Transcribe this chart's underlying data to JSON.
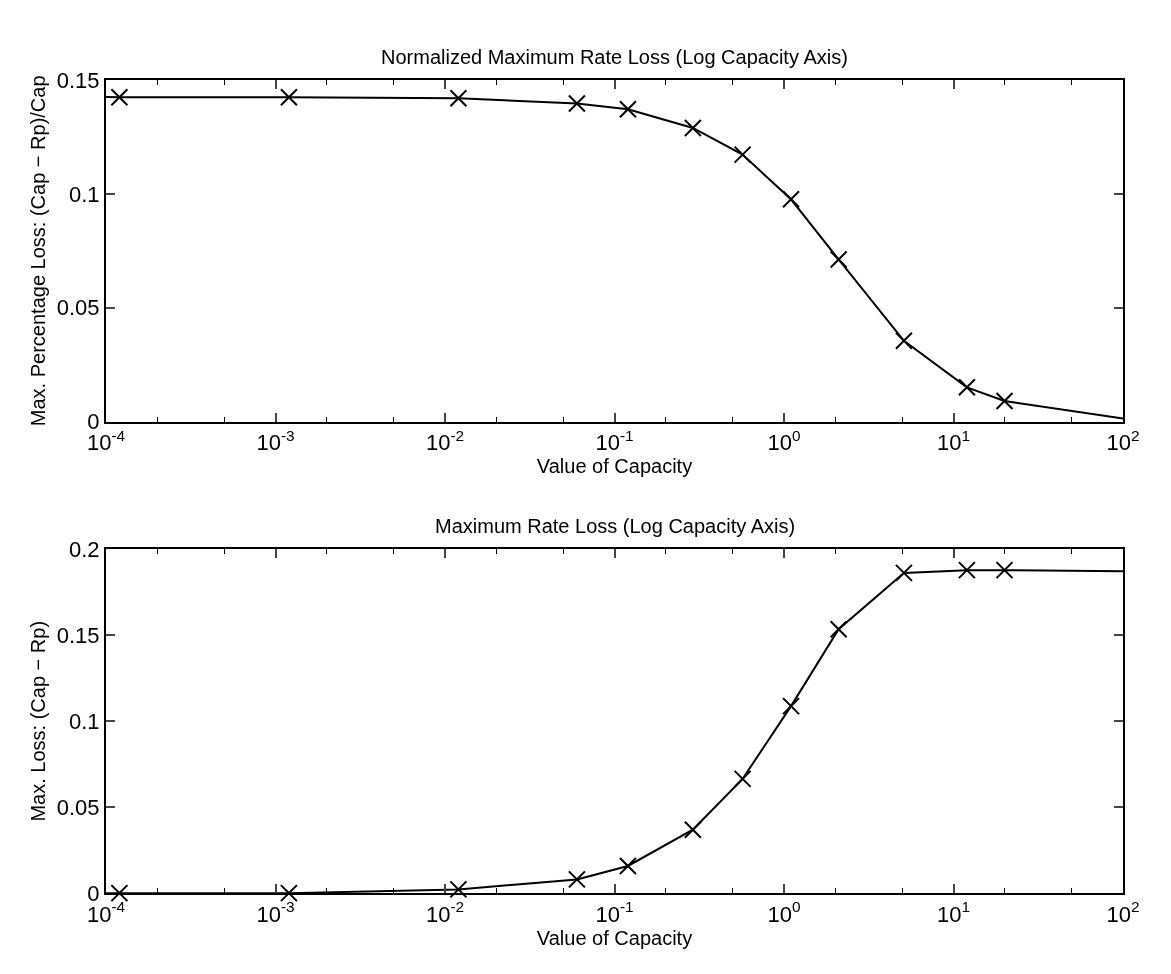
{
  "chart_data": [
    {
      "type": "line",
      "title": "Normalized Maximum Rate Loss (Log Capacity Axis)",
      "xlabel": "Value of Capacity",
      "ylabel": "Max. Percentage Loss: (Cap − Rp)/Cap",
      "series": [
        {
          "color": "#000000",
          "marker": "none",
          "x": [
            0.0001,
            0.00012,
            0.0012,
            0.012,
            0.06,
            0.12,
            0.29,
            0.57,
            1.1,
            2.1,
            5.1,
            12,
            20,
            100
          ],
          "values": [
            0.1425,
            0.1424,
            0.1424,
            0.1419,
            0.1396,
            0.1371,
            0.1289,
            0.1172,
            0.0976,
            0.0712,
            0.0355,
            0.0151,
            0.0091,
            0.0014
          ]
        },
        {
          "type": "scatter",
          "color": "#000000",
          "marker": "cross",
          "x": [
            0.00012,
            0.0012,
            0.012,
            0.06,
            0.12,
            0.29,
            0.57,
            1.1,
            2.1,
            5.1,
            12,
            20
          ],
          "values": [
            0.1424,
            0.1424,
            0.1419,
            0.1396,
            0.1371,
            0.1289,
            0.1172,
            0.0976,
            0.0712,
            0.0355,
            0.0151,
            0.0091
          ]
        }
      ],
      "log": "x",
      "xlim": [
        0.0001,
        100
      ],
      "xticks": [
        {
          "value": 0.0001,
          "label": "10$^{-4}$"
        },
        {
          "value": 0.001,
          "label": "10$^{-3}$"
        },
        {
          "value": 0.01,
          "label": "10$^{-2}$"
        },
        {
          "value": 0.1,
          "label": "10$^{-1}$"
        },
        {
          "value": 1,
          "label": "10$^{0}$"
        },
        {
          "value": 10,
          "label": "10$^{1}$"
        },
        {
          "value": 100,
          "label": "10$^{2}$"
        }
      ],
      "ylim": [
        0,
        0.15
      ],
      "yticks": [
        0,
        0.05,
        0.1,
        0.15
      ]
    },
    {
      "type": "line",
      "title": "Maximum Rate Loss (Log Capacity Axis)",
      "xlabel": "Value of Capacity",
      "ylabel": "Max. Loss: (Cap − Rp)",
      "series": [
        {
          "color": "#000000",
          "marker": "none",
          "x": [
            0.0001,
            0.00012,
            0.0012,
            0.012,
            0.06,
            0.12,
            0.29,
            0.57,
            1.1,
            2.1,
            5.1,
            12,
            20,
            100
          ],
          "values": [
            0,
            0,
            0,
            0.0022,
            0.008,
            0.0158,
            0.0369,
            0.0665,
            0.1088,
            0.1535,
            0.1863,
            0.1879,
            0.1879,
            0.1872
          ]
        },
        {
          "type": "scatter",
          "color": "#000000",
          "marker": "cross",
          "x": [
            0.00012,
            0.0012,
            0.012,
            0.06,
            0.12,
            0.29,
            0.57,
            1.1,
            2.1,
            5.1,
            12,
            20
          ],
          "values": [
            0,
            0,
            0.0022,
            0.008,
            0.0158,
            0.0369,
            0.0665,
            0.1088,
            0.1535,
            0.1863,
            0.1879,
            0.1879
          ]
        }
      ],
      "log": "x",
      "xlim": [
        0.0001,
        100
      ],
      "xticks": [
        {
          "value": 0.0001,
          "label": "10$^{-4}$"
        },
        {
          "value": 0.001,
          "label": "10$^{-3}$"
        },
        {
          "value": 0.01,
          "label": "10$^{-2}$"
        },
        {
          "value": 0.1,
          "label": "10$^{-1}$"
        },
        {
          "value": 1,
          "label": "10$^{0}$"
        },
        {
          "value": 10,
          "label": "10$^{1}$"
        },
        {
          "value": 100,
          "label": "10$^{2}$"
        }
      ],
      "ylim": [
        0,
        0.2
      ],
      "yticks": [
        0,
        0.05,
        0.1,
        0.15,
        0.2
      ]
    }
  ]
}
